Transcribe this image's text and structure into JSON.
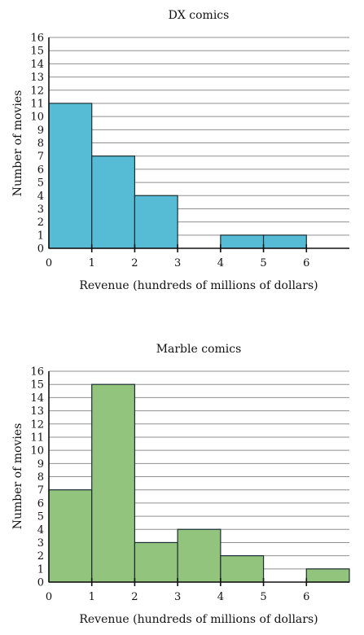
{
  "chart_data": [
    {
      "type": "bar",
      "title": "DX comics",
      "xlabel": "Revenue (hundreds of millions of dollars)",
      "ylabel": "Number of movies",
      "bin_edges": [
        0,
        1,
        2,
        3,
        4,
        5,
        6,
        7
      ],
      "x_ticks": [
        "0",
        "1",
        "2",
        "3",
        "4",
        "5",
        "6"
      ],
      "y_ticks": [
        "0",
        "1",
        "2",
        "3",
        "4",
        "5",
        "6",
        "7",
        "8",
        "9",
        "10",
        "11",
        "12",
        "13",
        "14",
        "15",
        "16"
      ],
      "values": [
        11,
        7,
        4,
        0,
        1,
        1,
        0
      ],
      "xlim": [
        0,
        7
      ],
      "ylim": [
        0,
        16
      ],
      "grid": true,
      "bar_color": "#56bcd6"
    },
    {
      "type": "bar",
      "title": "Marble comics",
      "xlabel": "Revenue (hundreds of millions of dollars)",
      "ylabel": "Number of movies",
      "bin_edges": [
        0,
        1,
        2,
        3,
        4,
        5,
        6,
        7
      ],
      "x_ticks": [
        "0",
        "1",
        "2",
        "3",
        "4",
        "5",
        "6"
      ],
      "y_ticks": [
        "0",
        "1",
        "2",
        "3",
        "4",
        "5",
        "6",
        "7",
        "8",
        "9",
        "10",
        "11",
        "12",
        "13",
        "14",
        "15",
        "16"
      ],
      "values": [
        7,
        15,
        3,
        4,
        2,
        0,
        1
      ],
      "xlim": [
        0,
        7
      ],
      "ylim": [
        0,
        16
      ],
      "grid": true,
      "bar_color": "#93c47d"
    }
  ]
}
